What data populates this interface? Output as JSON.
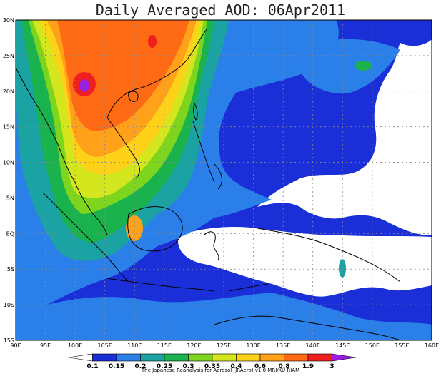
{
  "title": "Daily Averaged AOD: 06Apr2011",
  "credit": "The Japanese Reanalysis for Aerosol (JRAero) v1.0 MRI/KU RIAM",
  "map": {
    "lon_range": [
      90,
      160
    ],
    "lat_range": [
      -15,
      30
    ],
    "lon_ticks": [
      "90E",
      "95E",
      "100E",
      "105E",
      "110E",
      "115E",
      "120E",
      "125E",
      "130E",
      "135E",
      "140E",
      "145E",
      "150E",
      "155E",
      "160E"
    ],
    "lat_ticks": [
      "30N",
      "25N",
      "20N",
      "15N",
      "10N",
      "5N",
      "EQ",
      "5S",
      "10S",
      "15S"
    ],
    "gridlines": true
  },
  "colorbar": {
    "labels": [
      "0.1",
      "0.15",
      "0.2",
      "0.25",
      "0.3",
      "0.35",
      "0.4",
      "0.6",
      "0.8",
      "1.9",
      "3"
    ],
    "colors": [
      "#1a2fd8",
      "#2b7fe8",
      "#1ba3a3",
      "#19b24c",
      "#7dd51e",
      "#d4e61e",
      "#ffd21a",
      "#ffa21a",
      "#ff6a14",
      "#ef1f1f",
      "#9a1fe0"
    ],
    "below_color": "#ffffff"
  }
}
